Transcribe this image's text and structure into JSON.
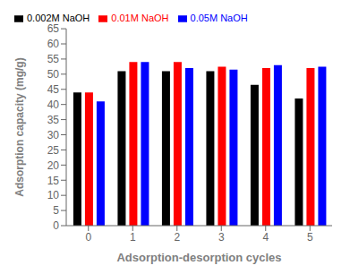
{
  "chart_data": {
    "type": "bar",
    "categories": [
      "0",
      "1",
      "2",
      "3",
      "4",
      "5"
    ],
    "series": [
      {
        "name": "0.002M NaOH",
        "color": "#000000",
        "values": [
          44,
          51,
          51,
          51,
          46.5,
          42
        ]
      },
      {
        "name": "0.01M NaOH",
        "color": "#ff0000",
        "values": [
          44,
          54,
          54,
          52.5,
          52,
          52
        ]
      },
      {
        "name": "0.05M NaOH",
        "color": "#0000ff",
        "values": [
          41,
          54,
          52,
          51.5,
          53,
          52.5
        ]
      }
    ],
    "xlabel": "Adsorption-desorption cycles",
    "ylabel": "Adsorption capacity (mg/g)",
    "ylim": [
      0,
      65
    ],
    "yticks": [
      0,
      5,
      10,
      15,
      20,
      25,
      30,
      35,
      40,
      45,
      50,
      55,
      60,
      65
    ],
    "grid": false,
    "legend": "upper left"
  }
}
